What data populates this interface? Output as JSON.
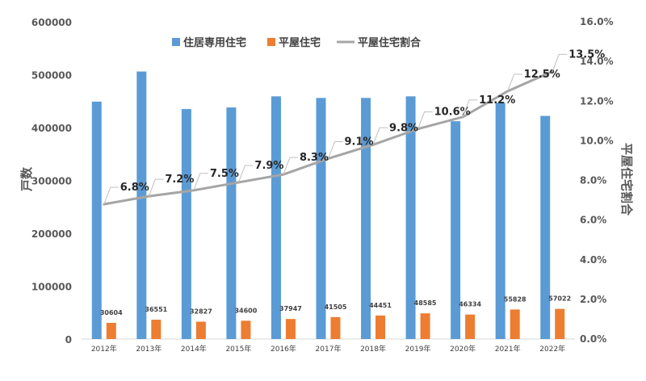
{
  "chart_data": {
    "type": "bar",
    "categories": [
      "2012年",
      "2013年",
      "2014年",
      "2015年",
      "2016年",
      "2017年",
      "2018年",
      "2019年",
      "2020年",
      "2021年",
      "2022年"
    ],
    "series": [
      {
        "name": "住居専用住宅",
        "type": "bar",
        "axis": "left",
        "color": "#5b9bd5",
        "values": [
          449000,
          506000,
          435000,
          438000,
          459000,
          456000,
          456000,
          459000,
          412000,
          447000,
          422000
        ]
      },
      {
        "name": "平屋住宅",
        "type": "bar",
        "axis": "left",
        "color": "#ed7d31",
        "values": [
          30604,
          36551,
          32827,
          34600,
          37947,
          41505,
          44451,
          48585,
          46334,
          55828,
          57022
        ],
        "labels": [
          "30604",
          "36551",
          "32827",
          "34600",
          "37947",
          "41505",
          "44451",
          "48585",
          "46334",
          "55828",
          "57022"
        ]
      },
      {
        "name": "平屋住宅割合",
        "type": "line",
        "axis": "right",
        "color": "#a5a5a5",
        "values": [
          6.8,
          7.2,
          7.5,
          7.9,
          8.3,
          9.1,
          9.8,
          10.6,
          11.2,
          12.5,
          13.5
        ],
        "labels": [
          "6.8%",
          "7.2%",
          "7.5%",
          "7.9%",
          "8.3%",
          "9.1%",
          "9.8%",
          "10.6%",
          "11.2%",
          "12.5%",
          "13.5%"
        ]
      }
    ],
    "ylabel": "戸数",
    "y2label": "平屋住宅割合",
    "ylim": [
      0,
      600000
    ],
    "y2lim": [
      0,
      16
    ],
    "yticks": [
      "0",
      "100000",
      "200000",
      "300000",
      "400000",
      "500000",
      "600000"
    ],
    "y2ticks": [
      "0.0%",
      "2.0%",
      "4.0%",
      "6.0%",
      "8.0%",
      "10.0%",
      "12.0%",
      "14.0%",
      "16.0%"
    ],
    "grid": false,
    "legend": "top-center"
  }
}
